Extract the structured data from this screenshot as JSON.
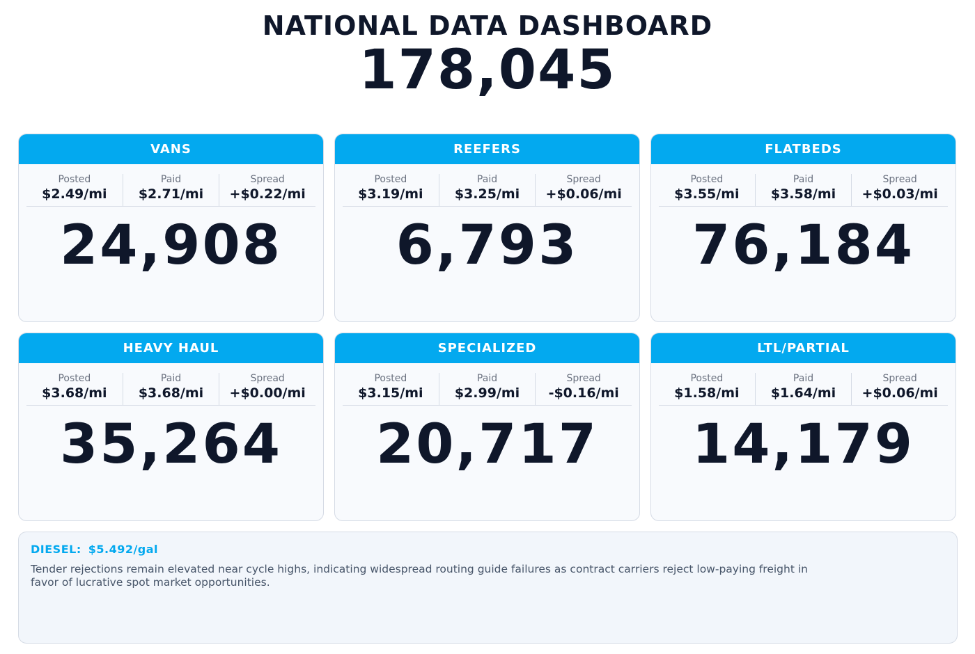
{
  "header": {
    "title": "NATIONAL DATA DASHBOARD",
    "total": "178,045"
  },
  "labels": {
    "posted": "Posted",
    "paid": "Paid",
    "spread": "Spread"
  },
  "cards": [
    {
      "name": "VANS",
      "posted": "$2.49/mi",
      "paid": "$2.71/mi",
      "spread": "+$0.22/mi",
      "count": "24,908"
    },
    {
      "name": "REEFERS",
      "posted": "$3.19/mi",
      "paid": "$3.25/mi",
      "spread": "+$0.06/mi",
      "count": "6,793"
    },
    {
      "name": "FLATBEDS",
      "posted": "$3.55/mi",
      "paid": "$3.58/mi",
      "spread": "+$0.03/mi",
      "count": "76,184"
    },
    {
      "name": "HEAVY HAUL",
      "posted": "$3.68/mi",
      "paid": "$3.68/mi",
      "spread": "+$0.00/mi",
      "count": "35,264"
    },
    {
      "name": "SPECIALIZED",
      "posted": "$3.15/mi",
      "paid": "$2.99/mi",
      "spread": "-$0.16/mi",
      "count": "20,717"
    },
    {
      "name": "LTL/PARTIAL",
      "posted": "$1.58/mi",
      "paid": "$1.64/mi",
      "spread": "+$0.06/mi",
      "count": "14,179"
    }
  ],
  "note": {
    "diesel_label": "DIESEL:",
    "diesel_value": "$5.492/gal",
    "text": "Tender rejections remain elevated near cycle highs, indicating widespread routing guide failures as contract carriers reject low-paying freight in favor of lucrative spot market opportunities."
  },
  "colors": {
    "accent": "#03a9ef",
    "text": "#0f172a",
    "muted": "#6b7280"
  }
}
